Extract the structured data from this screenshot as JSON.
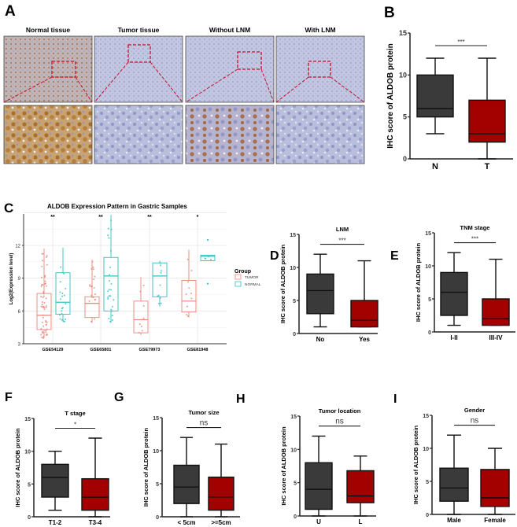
{
  "panel_a": {
    "label": "A",
    "columns": [
      "Normal tissue",
      "Tumor tissue",
      "Without LNM",
      "With LNM"
    ]
  },
  "colors": {
    "group1": "#3a3a3a",
    "group2": "#a30000",
    "tumor": "#e8847a",
    "normal": "#2fc0c0"
  },
  "chart_data": [
    {
      "id": "B",
      "label": "B",
      "type": "box",
      "title": "",
      "ylabel": "IHC score of ALDOB protein",
      "ylim": [
        0,
        15
      ],
      "yticks": [
        "0",
        "5",
        "10",
        "15"
      ],
      "significance": "***",
      "categories": [
        "N",
        "T"
      ],
      "boxes": [
        {
          "min": 3,
          "q1": 5,
          "median": 6,
          "q3": 10,
          "max": 12
        },
        {
          "min": 0,
          "q1": 2,
          "median": 3,
          "q3": 7,
          "max": 12
        }
      ]
    },
    {
      "id": "C",
      "label": "C",
      "type": "box",
      "title": "ALDOB Expression Pattern in Gastric Samples",
      "ylabel": "Log2(Expression level)",
      "ylim": [
        3,
        15
      ],
      "yticks": [
        "3",
        "6",
        "9",
        "12"
      ],
      "grid": true,
      "legend_title": "Group",
      "legend_position": "right",
      "series_names": [
        "TUMOR",
        "NORMAL"
      ],
      "categories": [
        "GSE54129",
        "GSE65801",
        "GSE79973",
        "GSE81948"
      ],
      "significance": [
        "**",
        "**",
        "**",
        "*"
      ],
      "series": [
        {
          "name": "TUMOR",
          "boxes": [
            {
              "min": 3.5,
              "q1": 4.3,
              "median": 5.6,
              "q3": 7.6,
              "max": 11.7
            },
            {
              "min": 4.9,
              "q1": 5.4,
              "median": 6.7,
              "q3": 7.3,
              "max": 10.7
            },
            {
              "min": 3.8,
              "q1": 4.0,
              "median": 5.2,
              "q3": 6.9,
              "max": 9.1
            },
            {
              "min": 5.4,
              "q1": 5.9,
              "median": 6.9,
              "q3": 8.8,
              "max": 11.6
            }
          ]
        },
        {
          "name": "NORMAL",
          "boxes": [
            {
              "min": 5.0,
              "q1": 5.7,
              "median": 6.8,
              "q3": 9.5,
              "max": 11.8
            },
            {
              "min": 4.9,
              "q1": 6.0,
              "median": 9.2,
              "q3": 10.9,
              "max": 14.8
            },
            {
              "min": 6.4,
              "q1": 7.3,
              "median": 9.2,
              "q3": 10.4,
              "max": 10.6
            },
            {
              "min": 10.6,
              "q1": 10.6,
              "median": 11.0,
              "q3": 11.1,
              "max": 11.1,
              "outliers": [
                12.5,
                8.5
              ]
            }
          ]
        }
      ]
    },
    {
      "id": "D",
      "label": "D",
      "type": "box",
      "title": "LNM",
      "ylabel": "IHC score of ALDOB protein",
      "ylim": [
        0,
        15
      ],
      "yticks": [
        "0",
        "5",
        "10",
        "15"
      ],
      "significance": "***",
      "categories": [
        "No",
        "Yes"
      ],
      "boxes": [
        {
          "min": 1,
          "q1": 3,
          "median": 6.5,
          "q3": 9,
          "max": 12
        },
        {
          "min": 1,
          "q1": 1,
          "median": 2,
          "q3": 5,
          "max": 11
        }
      ]
    },
    {
      "id": "E",
      "label": "E",
      "type": "box",
      "title": "TNM stage",
      "ylabel": "IHC score of ALDOB protein",
      "ylim": [
        0,
        15
      ],
      "yticks": [
        "0",
        "5",
        "10",
        "15"
      ],
      "significance": "***",
      "categories": [
        "I-II",
        "III-IV"
      ],
      "boxes": [
        {
          "min": 1,
          "q1": 2.5,
          "median": 6,
          "q3": 9,
          "max": 12
        },
        {
          "min": 1,
          "q1": 1,
          "median": 2,
          "q3": 5,
          "max": 11
        }
      ]
    },
    {
      "id": "F",
      "label": "F",
      "type": "box",
      "title": "T stage",
      "ylabel": "IHC score of ALDOB protein",
      "ylim": [
        0,
        15
      ],
      "yticks": [
        "0",
        "5",
        "10",
        "15"
      ],
      "significance": "*",
      "categories": [
        "T1-2",
        "T3-4"
      ],
      "boxes": [
        {
          "min": 1,
          "q1": 3,
          "median": 6,
          "q3": 8,
          "max": 10
        },
        {
          "min": 0,
          "q1": 1,
          "median": 3,
          "q3": 5.8,
          "max": 12
        }
      ]
    },
    {
      "id": "G",
      "label": "G",
      "type": "box",
      "title": "Tumor size",
      "ylabel": "IHC score of ALDOB protein",
      "ylim": [
        0,
        15
      ],
      "yticks": [
        "0",
        "5",
        "10",
        "15"
      ],
      "significance": "ns",
      "categories": [
        "< 5cm",
        ">=5cm"
      ],
      "boxes": [
        {
          "min": 0,
          "q1": 2,
          "median": 4.5,
          "q3": 7.8,
          "max": 12
        },
        {
          "min": 0,
          "q1": 1,
          "median": 3,
          "q3": 6,
          "max": 11
        }
      ]
    },
    {
      "id": "H",
      "label": "H",
      "type": "box",
      "title": "Tumor location",
      "ylabel": "IHC score of ALDOB protein",
      "ylim": [
        0,
        15
      ],
      "yticks": [
        "0",
        "5",
        "10",
        "15"
      ],
      "significance": "ns",
      "categories": [
        "U",
        "L"
      ],
      "boxes": [
        {
          "min": 0,
          "q1": 1,
          "median": 4,
          "q3": 8,
          "max": 12
        },
        {
          "min": 0,
          "q1": 2,
          "median": 3,
          "q3": 6.8,
          "max": 9
        }
      ]
    },
    {
      "id": "I",
      "label": "I",
      "type": "box",
      "title": "Gender",
      "ylabel": "IHC score of ALDOB protein",
      "ylim": [
        0,
        15
      ],
      "yticks": [
        "0",
        "5",
        "10",
        "15"
      ],
      "significance": "ns",
      "categories": [
        "Male",
        "Female"
      ],
      "boxes": [
        {
          "min": 0,
          "q1": 2,
          "median": 4,
          "q3": 7,
          "max": 12
        },
        {
          "min": 0,
          "q1": 1.2,
          "median": 2.5,
          "q3": 6.8,
          "max": 10
        }
      ]
    }
  ]
}
